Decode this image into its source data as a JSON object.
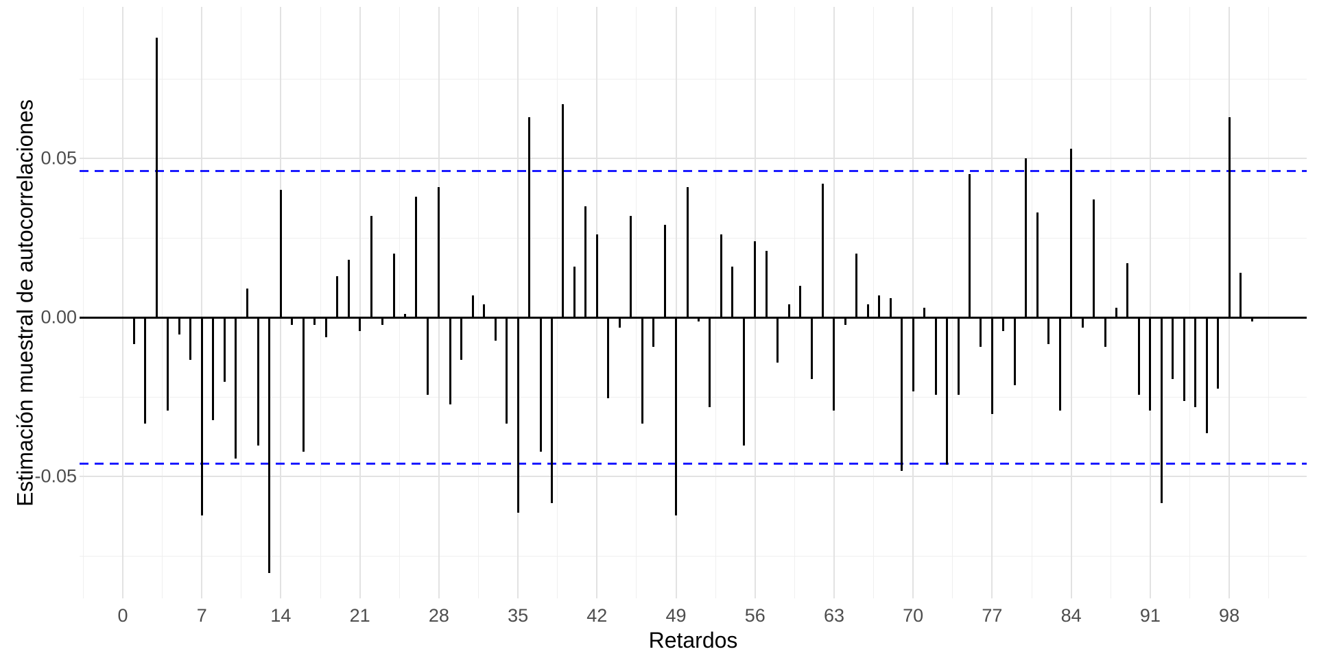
{
  "chart_data": {
    "type": "bar",
    "subtype": "acf-lollipop",
    "title": "",
    "xlabel": "Retardos",
    "ylabel": "Estimación muestral de autocorrelaciones",
    "x_tick_labels": [
      "0",
      "7",
      "14",
      "21",
      "28",
      "35",
      "42",
      "49",
      "56",
      "63",
      "70",
      "77",
      "84",
      "91",
      "98"
    ],
    "x_tick_values": [
      0,
      7,
      14,
      21,
      28,
      35,
      42,
      49,
      56,
      63,
      70,
      77,
      84,
      91,
      98
    ],
    "x_minor_tick_values": [
      -3.5,
      3.5,
      10.5,
      17.5,
      24.5,
      31.5,
      38.5,
      45.5,
      52.5,
      59.5,
      66.5,
      73.5,
      80.5,
      87.5,
      94.5,
      101.5
    ],
    "y_tick_labels": [
      "0.05",
      "0.00",
      "-0.05"
    ],
    "y_tick_values": [
      0.05,
      0.0,
      -0.05
    ],
    "y_minor_tick_values": [
      0.075,
      0.025,
      -0.025,
      -0.075
    ],
    "ylim": [
      -0.0975,
      0.0975
    ],
    "xlim": [
      -3.8,
      104.9
    ],
    "grid": "on",
    "legend": "none",
    "confidence_bounds": {
      "upper": 0.046,
      "lower": -0.046,
      "style": "dashed"
    },
    "lags": [
      1,
      2,
      3,
      4,
      5,
      6,
      7,
      8,
      9,
      10,
      11,
      12,
      13,
      14,
      15,
      16,
      17,
      18,
      19,
      20,
      21,
      22,
      23,
      24,
      25,
      26,
      27,
      28,
      29,
      30,
      31,
      32,
      33,
      34,
      35,
      36,
      37,
      38,
      39,
      40,
      41,
      42,
      43,
      44,
      45,
      46,
      47,
      48,
      49,
      50,
      51,
      52,
      53,
      54,
      55,
      56,
      57,
      58,
      59,
      60,
      61,
      62,
      63,
      64,
      65,
      66,
      67,
      68,
      69,
      70,
      71,
      72,
      73,
      74,
      75,
      76,
      77,
      78,
      79,
      80,
      81,
      82,
      83,
      84,
      85,
      86,
      87,
      88,
      89,
      90,
      91,
      92,
      93,
      94,
      95,
      96,
      97,
      98,
      99,
      100
    ],
    "values": [
      -0.008,
      -0.033,
      0.088,
      -0.029,
      -0.005,
      -0.013,
      -0.062,
      -0.032,
      -0.02,
      -0.044,
      0.009,
      -0.04,
      -0.08,
      0.04,
      -0.002,
      -0.042,
      -0.002,
      -0.006,
      0.013,
      0.018,
      -0.004,
      0.032,
      -0.002,
      0.02,
      0.001,
      0.038,
      -0.024,
      0.041,
      -0.027,
      -0.013,
      0.007,
      0.004,
      -0.007,
      -0.033,
      -0.061,
      0.063,
      -0.042,
      -0.058,
      0.067,
      0.016,
      0.035,
      0.026,
      -0.025,
      -0.003,
      0.032,
      -0.033,
      -0.009,
      0.029,
      -0.062,
      0.041,
      -0.001,
      -0.028,
      0.026,
      0.016,
      -0.04,
      0.024,
      0.021,
      -0.014,
      0.004,
      0.01,
      -0.019,
      0.042,
      -0.029,
      -0.002,
      0.02,
      0.004,
      0.007,
      0.006,
      -0.048,
      -0.023,
      0.003,
      -0.024,
      -0.046,
      -0.024,
      0.045,
      -0.009,
      -0.03,
      -0.004,
      -0.021,
      0.05,
      0.033,
      -0.008,
      -0.029,
      0.053,
      -0.003,
      0.037,
      -0.009,
      0.003,
      0.017,
      -0.024,
      -0.029,
      -0.058,
      -0.019,
      -0.026,
      -0.028,
      -0.036,
      -0.022,
      0.063,
      0.014,
      -0.001
    ]
  },
  "colors": {
    "background": "#ffffff",
    "bar": "#000000",
    "zero_line": "#000000",
    "confidence_line": "#1a1aff",
    "grid_major": "#e2e2e2",
    "grid_minor": "#efefef",
    "axis_text": "#4d4d4d",
    "axis_title": "#000000"
  }
}
